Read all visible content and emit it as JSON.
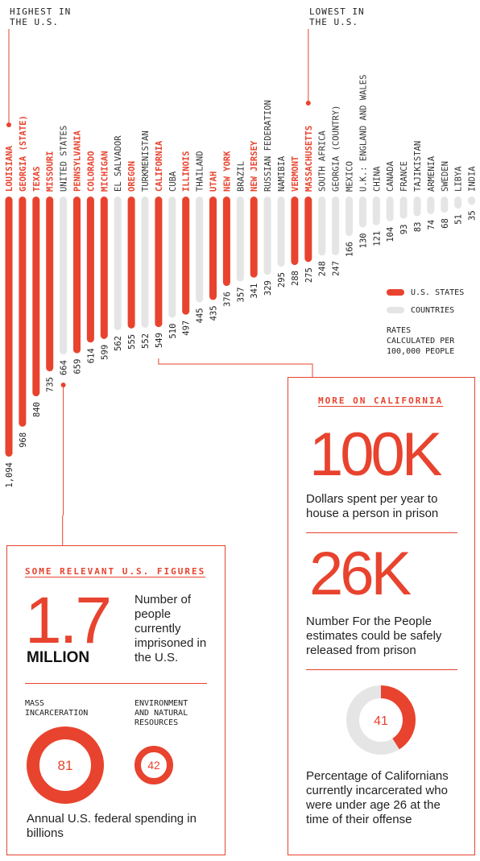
{
  "chart_data": {
    "type": "bar",
    "orientation": "vertical-hanging",
    "unit_note": "RATES\nCALCULATED PER\n100,000 PEOPLE",
    "ylim": [
      0,
      1094
    ],
    "series": [
      {
        "name": "U.S. STATES",
        "color": "#e8432e"
      },
      {
        "name": "COUNTRIES",
        "color": "#e5e5e5"
      }
    ],
    "bars": [
      {
        "label": "LOUISIANA",
        "value": 1094,
        "display": "1,094",
        "group": "U.S. STATES"
      },
      {
        "label": "GEORGIA (STATE)",
        "value": 968,
        "display": "968",
        "group": "U.S. STATES"
      },
      {
        "label": "TEXAS",
        "value": 840,
        "display": "840",
        "group": "U.S. STATES"
      },
      {
        "label": "MISSOURI",
        "value": 735,
        "display": "735",
        "group": "U.S. STATES"
      },
      {
        "label": "UNITED STATES",
        "value": 664,
        "display": "664",
        "group": "COUNTRIES"
      },
      {
        "label": "PENNSYLVANIA",
        "value": 659,
        "display": "659",
        "group": "U.S. STATES"
      },
      {
        "label": "COLORADO",
        "value": 614,
        "display": "614",
        "group": "U.S. STATES"
      },
      {
        "label": "MICHIGAN",
        "value": 599,
        "display": "599",
        "group": "U.S. STATES"
      },
      {
        "label": "EL SALVADOR",
        "value": 562,
        "display": "562",
        "group": "COUNTRIES"
      },
      {
        "label": "OREGON",
        "value": 555,
        "display": "555",
        "group": "U.S. STATES"
      },
      {
        "label": "TURKMENISTAN",
        "value": 552,
        "display": "552",
        "group": "COUNTRIES"
      },
      {
        "label": "CALIFORNIA",
        "value": 549,
        "display": "549",
        "group": "U.S. STATES"
      },
      {
        "label": "CUBA",
        "value": 510,
        "display": "510",
        "group": "COUNTRIES"
      },
      {
        "label": "ILLINOIS",
        "value": 497,
        "display": "497",
        "group": "U.S. STATES"
      },
      {
        "label": "THAILAND",
        "value": 445,
        "display": "445",
        "group": "COUNTRIES"
      },
      {
        "label": "UTAH",
        "value": 435,
        "display": "435",
        "group": "U.S. STATES"
      },
      {
        "label": "NEW YORK",
        "value": 376,
        "display": "376",
        "group": "U.S. STATES"
      },
      {
        "label": "BRAZIL",
        "value": 357,
        "display": "357",
        "group": "COUNTRIES"
      },
      {
        "label": "NEW JERSEY",
        "value": 341,
        "display": "341",
        "group": "U.S. STATES"
      },
      {
        "label": "RUSSIAN FEDERATION",
        "value": 329,
        "display": "329",
        "group": "COUNTRIES"
      },
      {
        "label": "NAMIBIA",
        "value": 295,
        "display": "295",
        "group": "COUNTRIES"
      },
      {
        "label": "VERMONT",
        "value": 288,
        "display": "288",
        "group": "U.S. STATES"
      },
      {
        "label": "MASSACHUSETTS",
        "value": 275,
        "display": "275",
        "group": "U.S. STATES"
      },
      {
        "label": "SOUTH AFRICA",
        "value": 248,
        "display": "248",
        "group": "COUNTRIES"
      },
      {
        "label": "GEORGIA (COUNTRY)",
        "value": 247,
        "display": "247",
        "group": "COUNTRIES"
      },
      {
        "label": "MEXICO",
        "value": 166,
        "display": "166",
        "group": "COUNTRIES"
      },
      {
        "label": "U.K.: ENGLAND AND WALES",
        "value": 130,
        "display": "130",
        "group": "COUNTRIES"
      },
      {
        "label": "CHINA",
        "value": 121,
        "display": "121",
        "group": "COUNTRIES"
      },
      {
        "label": "CANADA",
        "value": 104,
        "display": "104",
        "group": "COUNTRIES"
      },
      {
        "label": "FRANCE",
        "value": 93,
        "display": "93",
        "group": "COUNTRIES"
      },
      {
        "label": "TAJIKISTAN",
        "value": 83,
        "display": "83",
        "group": "COUNTRIES"
      },
      {
        "label": "ARMENIA",
        "value": 74,
        "display": "74",
        "group": "COUNTRIES"
      },
      {
        "label": "SWEDEN",
        "value": 68,
        "display": "68",
        "group": "COUNTRIES"
      },
      {
        "label": "LIBYA",
        "value": 51,
        "display": "51",
        "group": "COUNTRIES"
      },
      {
        "label": "INDIA",
        "value": 35,
        "display": "35",
        "group": "COUNTRIES"
      }
    ],
    "annotations": {
      "highest": "HIGHEST IN\nTHE U.S.",
      "lowest": "LOWEST IN\nTHE U.S."
    }
  },
  "us_figures": {
    "title": "SOME RELEVANT U.S. FIGURES",
    "big_number": "1.7",
    "big_unit": "MILLION",
    "big_desc": "Number of people currently imprisoned in the U.S.",
    "mass_label": "MASS\nINCARCERATION",
    "mass_value": 81,
    "env_label": "ENVIRONMENT\nAND NATURAL\nRESOURCES",
    "env_value": 42,
    "spending_caption": "Annual U.S. federal spending in billions"
  },
  "california": {
    "title": "MORE ON CALIFORNIA",
    "stat1_value": "100K",
    "stat1_desc": "Dollars spent per year to house a person in prison",
    "stat2_value": "26K",
    "stat2_desc": "Number For the People estimates could be safely released from prison",
    "donut_value": 41,
    "donut_desc": "Percentage of Californians currently incarcerated who were under age 26 at the time of their offense"
  },
  "colors": {
    "accent": "#e8432e",
    "country": "#e5e5e5",
    "text": "#222222"
  }
}
